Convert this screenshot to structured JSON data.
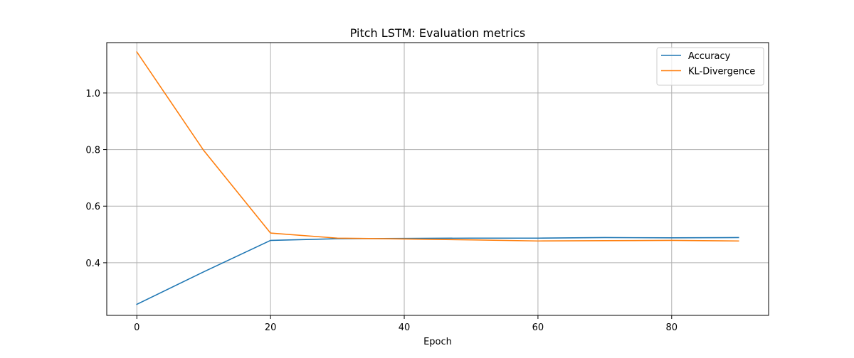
{
  "chart_data": {
    "type": "line",
    "title": "Pitch LSTM: Evaluation metrics",
    "xlabel": "Epoch",
    "ylabel": "",
    "xlim": [
      -4.5,
      94.5
    ],
    "ylim": [
      0.214,
      1.178
    ],
    "grid": true,
    "legend_placement": "top-right",
    "x_ticks": [
      0,
      20,
      40,
      60,
      80
    ],
    "x_tick_labels": [
      "0",
      "20",
      "40",
      "60",
      "80"
    ],
    "y_ticks": [
      0.4,
      0.6,
      0.8,
      1.0
    ],
    "y_tick_labels": [
      "0.4",
      "0.6",
      "0.8",
      "1.0"
    ],
    "x": [
      0,
      10,
      20,
      30,
      40,
      50,
      60,
      70,
      80,
      90
    ],
    "series": [
      {
        "name": "Accuracy",
        "color": "#1f77b4",
        "values": [
          0.253,
          0.368,
          0.479,
          0.485,
          0.486,
          0.487,
          0.487,
          0.489,
          0.488,
          0.489
        ]
      },
      {
        "name": "KL-Divergence",
        "color": "#ff7f0e",
        "values": [
          1.145,
          0.797,
          0.505,
          0.487,
          0.484,
          0.481,
          0.477,
          0.478,
          0.479,
          0.477
        ]
      }
    ]
  }
}
